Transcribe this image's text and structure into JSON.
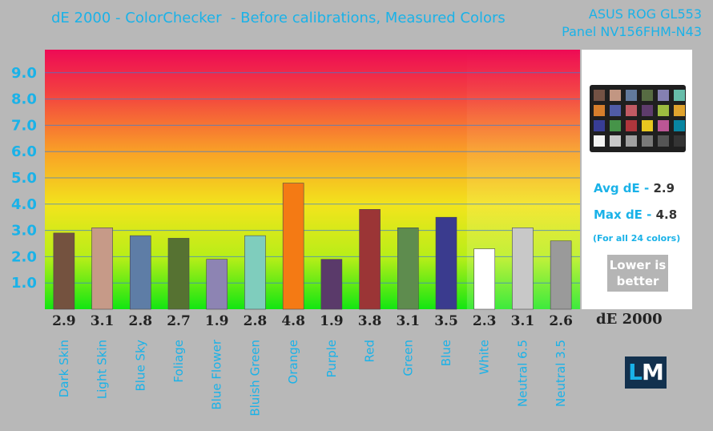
{
  "header": {
    "title": "dE 2000 - ColorChecker  - Before calibrations, Measured Colors",
    "device_line1": "ASUS ROG GL553",
    "device_line2": "Panel NV156FHM-N43"
  },
  "chart_data": {
    "type": "bar",
    "title": "dE 2000 - ColorChecker  - Before calibrations, Measured Colors",
    "categories": [
      "Dark Skin",
      "Light Skin",
      "Blue Sky",
      "Foliage",
      "Blue Flower",
      "Bluish Green",
      "Orange",
      "Purple",
      "Red",
      "Green",
      "Blue",
      "White",
      "Neutral 6.5",
      "Neutral 3.5"
    ],
    "values": [
      2.9,
      3.1,
      2.8,
      2.7,
      1.9,
      2.8,
      4.8,
      1.9,
      3.8,
      3.1,
      3.5,
      2.3,
      3.1,
      2.6
    ],
    "value_labels": [
      "2.9",
      "3.1",
      "2.8",
      "2.7",
      "1.9",
      "2.8",
      "4.8",
      "1.9",
      "3.8",
      "3.1",
      "3.5",
      "2.3",
      "3.1",
      "2.6"
    ],
    "bar_colors": [
      "#74523f",
      "#c69a88",
      "#5e7da6",
      "#567232",
      "#8d84b3",
      "#7fcdbd",
      "#f47a14",
      "#5a3a6a",
      "#9b3536",
      "#5e8c4e",
      "#3a3b8e",
      "#ffffff",
      "#c8c8c8",
      "#9a9a9a"
    ],
    "yticks": [
      "1.0",
      "2.0",
      "3.0",
      "4.0",
      "5.0",
      "6.0",
      "7.0",
      "8.0",
      "9.0"
    ],
    "ylim": [
      0,
      10
    ],
    "xlabel": "dE 2000",
    "ylabel": "",
    "grid": true,
    "legend": "none"
  },
  "side": {
    "avg_label": "Avg dE - ",
    "avg_value": "2.9",
    "max_label": "Max dE - ",
    "max_value": "4.8",
    "note": "(For all 24 colors)",
    "lower_line1": "Lower is",
    "lower_line2": "better",
    "axis_name": "dE 2000"
  },
  "logo": {
    "l": "L",
    "m": "M"
  },
  "colors": {
    "accent": "#1ab2e8",
    "background": "#b8b8b8",
    "checker_swatches": [
      "#735244",
      "#c29682",
      "#627a9d",
      "#576c43",
      "#8580b1",
      "#67bdaa",
      "#d67e2c",
      "#505ba6",
      "#c15a63",
      "#5e3c6c",
      "#9dbc40",
      "#e0a32e",
      "#383d96",
      "#469449",
      "#af363c",
      "#e7c71f",
      "#bb5695",
      "#0885a1",
      "#f3f3f2",
      "#c8c8c8",
      "#a0a0a0",
      "#7a7a79",
      "#555555",
      "#343434"
    ]
  }
}
